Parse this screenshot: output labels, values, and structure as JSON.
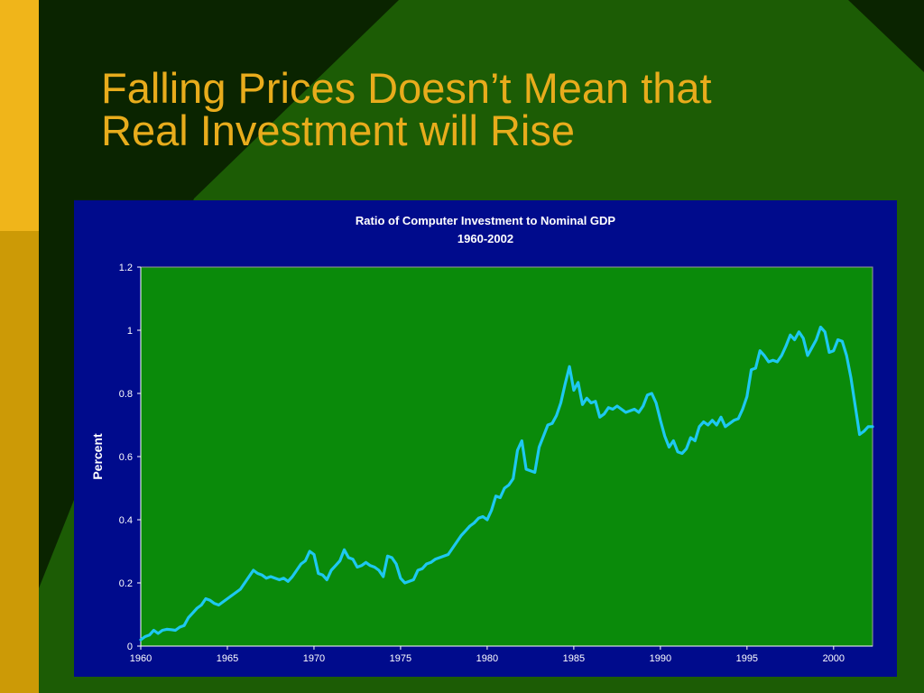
{
  "slide": {
    "title_line1": "Falling Prices Doesn’t Mean that",
    "title_line2": "Real Investment will Rise"
  },
  "colors": {
    "title_text": "#e8ac1c",
    "panel_background": "#000b8c",
    "plot_background": "#0a8a0a",
    "series_line": "#1ec8f0",
    "chart_text": "#ffffff"
  },
  "chart_data": {
    "type": "line",
    "title": "Ratio of Computer Investment to Nominal GDP",
    "subtitle": "1960-2002",
    "xlabel": "",
    "ylabel": "Percent",
    "xlim": [
      1960,
      2002.25
    ],
    "ylim": [
      0,
      1.2
    ],
    "xticks": [
      "1960",
      "1965",
      "1970",
      "1975",
      "1980",
      "1985",
      "1990",
      "1995",
      "2000"
    ],
    "yticks": [
      "0",
      "0.2",
      "0.4",
      "0.6",
      "0.8",
      "1",
      "1.2"
    ],
    "grid": false,
    "legend": "none",
    "series": [
      {
        "x": [
          1960.0,
          1960.25,
          1960.5,
          1960.75,
          1961.0,
          1961.25,
          1961.5,
          1961.75,
          1962.0,
          1962.25,
          1962.5,
          1962.75,
          1963.0,
          1963.25,
          1963.5,
          1963.75,
          1964.0,
          1964.25,
          1964.5,
          1964.75,
          1965.0,
          1965.25,
          1965.5,
          1965.75,
          1966.0,
          1966.25,
          1966.5,
          1966.75,
          1967.0,
          1967.25,
          1967.5,
          1967.75,
          1968.0,
          1968.25,
          1968.5,
          1968.75,
          1969.0,
          1969.25,
          1969.5,
          1969.75,
          1970.0,
          1970.25,
          1970.5,
          1970.75,
          1971.0,
          1971.25,
          1971.5,
          1971.75,
          1972.0,
          1972.25,
          1972.5,
          1972.75,
          1973.0,
          1973.25,
          1973.5,
          1973.75,
          1974.0,
          1974.25,
          1974.5,
          1974.75,
          1975.0,
          1975.25,
          1975.5,
          1975.75,
          1976.0,
          1976.25,
          1976.5,
          1976.75,
          1977.0,
          1977.25,
          1977.5,
          1977.75,
          1978.0,
          1978.25,
          1978.5,
          1978.75,
          1979.0,
          1979.25,
          1979.5,
          1979.75,
          1980.0,
          1980.25,
          1980.5,
          1980.75,
          1981.0,
          1981.25,
          1981.5,
          1981.75,
          1982.0,
          1982.25,
          1982.5,
          1982.75,
          1983.0,
          1983.25,
          1983.5,
          1983.75,
          1984.0,
          1984.25,
          1984.5,
          1984.75,
          1985.0,
          1985.25,
          1985.5,
          1985.75,
          1986.0,
          1986.25,
          1986.5,
          1986.75,
          1987.0,
          1987.25,
          1987.5,
          1987.75,
          1988.0,
          1988.25,
          1988.5,
          1988.75,
          1989.0,
          1989.25,
          1989.5,
          1989.75,
          1990.0,
          1990.25,
          1990.5,
          1990.75,
          1991.0,
          1991.25,
          1991.5,
          1991.75,
          1992.0,
          1992.25,
          1992.5,
          1992.75,
          1993.0,
          1993.25,
          1993.5,
          1993.75,
          1994.0,
          1994.25,
          1994.5,
          1994.75,
          1995.0,
          1995.25,
          1995.5,
          1995.75,
          1996.0,
          1996.25,
          1996.5,
          1996.75,
          1997.0,
          1997.25,
          1997.5,
          1997.75,
          1998.0,
          1998.25,
          1998.5,
          1998.75,
          1999.0,
          1999.25,
          1999.5,
          1999.75,
          2000.0,
          2000.25,
          2000.5,
          2000.75,
          2001.0,
          2001.25,
          2001.5,
          2001.75,
          2002.0,
          2002.25
        ],
        "y": [
          0.02,
          0.03,
          0.035,
          0.05,
          0.04,
          0.05,
          0.053,
          0.052,
          0.05,
          0.06,
          0.065,
          0.09,
          0.105,
          0.12,
          0.13,
          0.15,
          0.145,
          0.135,
          0.13,
          0.14,
          0.15,
          0.16,
          0.17,
          0.18,
          0.2,
          0.22,
          0.24,
          0.23,
          0.225,
          0.215,
          0.22,
          0.215,
          0.21,
          0.215,
          0.205,
          0.22,
          0.24,
          0.26,
          0.27,
          0.3,
          0.29,
          0.23,
          0.225,
          0.21,
          0.24,
          0.255,
          0.27,
          0.305,
          0.28,
          0.275,
          0.25,
          0.255,
          0.265,
          0.255,
          0.25,
          0.24,
          0.22,
          0.285,
          0.28,
          0.26,
          0.215,
          0.2,
          0.205,
          0.21,
          0.24,
          0.245,
          0.26,
          0.265,
          0.275,
          0.28,
          0.285,
          0.29,
          0.31,
          0.33,
          0.35,
          0.365,
          0.38,
          0.39,
          0.405,
          0.41,
          0.4,
          0.43,
          0.475,
          0.47,
          0.5,
          0.51,
          0.53,
          0.62,
          0.65,
          0.56,
          0.555,
          0.55,
          0.63,
          0.665,
          0.7,
          0.705,
          0.73,
          0.77,
          0.83,
          0.885,
          0.81,
          0.835,
          0.765,
          0.785,
          0.77,
          0.775,
          0.725,
          0.735,
          0.755,
          0.75,
          0.76,
          0.75,
          0.74,
          0.745,
          0.75,
          0.74,
          0.76,
          0.795,
          0.8,
          0.77,
          0.715,
          0.665,
          0.63,
          0.65,
          0.615,
          0.61,
          0.625,
          0.66,
          0.65,
          0.695,
          0.71,
          0.7,
          0.715,
          0.7,
          0.725,
          0.695,
          0.705,
          0.715,
          0.72,
          0.75,
          0.79,
          0.875,
          0.88,
          0.935,
          0.92,
          0.9,
          0.905,
          0.9,
          0.92,
          0.95,
          0.985,
          0.97,
          0.995,
          0.975,
          0.92,
          0.945,
          0.97,
          1.01,
          0.995,
          0.93,
          0.935,
          0.97,
          0.965,
          0.92,
          0.85,
          0.76,
          0.67,
          0.68,
          0.695,
          0.695
        ]
      }
    ]
  }
}
